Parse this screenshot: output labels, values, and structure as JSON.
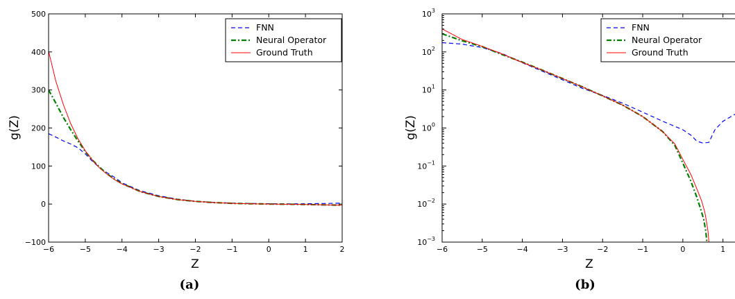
{
  "chart_data": [
    {
      "type": "line",
      "caption_paren_open": "(",
      "caption_letter": "a",
      "caption_paren_close": ")",
      "xlabel": "Z",
      "ylabel": "g(Z)",
      "xlim": [
        -6,
        2
      ],
      "ylim": [
        -100,
        500
      ],
      "yscale": "linear",
      "xticks": [
        "−6",
        "−5",
        "−4",
        "−3",
        "−2",
        "−1",
        "0",
        "1",
        "2"
      ],
      "yticks": [
        "−100",
        "0",
        "100",
        "200",
        "300",
        "400",
        "500"
      ],
      "legend_position": "top-right",
      "series": [
        {
          "name": "FNN",
          "color": "#0000ff",
          "style": "dashed",
          "x": [
            -6,
            -5.8,
            -5.6,
            -5.4,
            -5.2,
            -5.0,
            -4.8,
            -4.6,
            -4.4,
            -4.2,
            -4.0,
            -3.5,
            -3.0,
            -2.5,
            -2.0,
            -1.5,
            -1.0,
            -0.5,
            0,
            0.5,
            1.0,
            1.5,
            2.0
          ],
          "y": [
            185,
            176,
            166,
            158,
            148,
            132,
            112,
            95,
            82,
            70,
            56,
            35,
            22,
            13,
            7.5,
            4.5,
            2.5,
            1.5,
            1.0,
            0.5,
            0.8,
            1.5,
            2.5
          ]
        },
        {
          "name": "Neural Operator",
          "color": "#008000",
          "style": "dashdot",
          "x": [
            -6,
            -5.8,
            -5.6,
            -5.4,
            -5.2,
            -5.0,
            -4.8,
            -4.6,
            -4.4,
            -4.2,
            -4.0,
            -3.5,
            -3.0,
            -2.5,
            -2.0,
            -1.5,
            -1.0,
            -0.5,
            0,
            0.5,
            1.0,
            1.5,
            2.0
          ],
          "y": [
            300,
            265,
            228,
            196,
            166,
            138,
            115,
            96,
            79,
            65,
            54,
            33,
            20,
            12,
            7,
            4,
            2,
            0.8,
            0.1,
            -0.5,
            -1.2,
            -2.0,
            -3.0
          ]
        },
        {
          "name": "Ground Truth",
          "color": "#ff0000",
          "style": "solid",
          "x": [
            -6,
            -5.8,
            -5.6,
            -5.4,
            -5.2,
            -5.0,
            -4.8,
            -4.6,
            -4.4,
            -4.2,
            -4.0,
            -3.5,
            -3.0,
            -2.5,
            -2.0,
            -1.5,
            -1.0,
            -0.5,
            0,
            0.5,
            1.0,
            1.5,
            2.0
          ],
          "y": [
            402,
            322,
            262,
            212,
            172,
            140,
            115,
            94,
            78,
            64,
            53,
            33,
            20,
            12,
            7,
            4,
            2,
            0.8,
            0.1,
            -0.5,
            -1.2,
            -2.0,
            -3.0
          ]
        }
      ]
    },
    {
      "type": "line",
      "caption_paren_open": "(",
      "caption_letter": "b",
      "caption_paren_close": ")",
      "xlabel": "Z",
      "ylabel": "g(Z)",
      "xlim": [
        -6,
        1.3
      ],
      "ylim": [
        0.001,
        1000
      ],
      "yscale": "log",
      "xticks": [
        "−6",
        "−5",
        "−4",
        "−3",
        "−2",
        "−1",
        "0",
        "1"
      ],
      "yticks_base": [
        "10",
        "10",
        "10",
        "10",
        "10",
        "10",
        "10"
      ],
      "yticks_exp": [
        "−3",
        "−2",
        "−1",
        "0",
        "1",
        "2",
        "3"
      ],
      "legend_position": "top-right",
      "series": [
        {
          "name": "FNN",
          "color": "#0000ff",
          "style": "dashed",
          "x": [
            -6,
            -5.5,
            -5.0,
            -4.5,
            -4.0,
            -3.5,
            -3.0,
            -2.5,
            -2.0,
            -1.5,
            -1.0,
            -0.5,
            0,
            0.2,
            0.35,
            0.5,
            0.65,
            0.8,
            1.0,
            1.2,
            1.3
          ],
          "y": [
            175,
            160,
            130,
            90,
            52,
            31,
            18.5,
            11,
            7.2,
            4.5,
            2.6,
            1.5,
            0.9,
            0.65,
            0.45,
            0.4,
            0.42,
            0.9,
            1.5,
            2.0,
            2.3
          ]
        },
        {
          "name": "Neural Operator",
          "color": "#008000",
          "style": "dashdot",
          "x": [
            -6,
            -5.5,
            -5.0,
            -4.5,
            -4.0,
            -3.5,
            -3.0,
            -2.5,
            -2.0,
            -1.5,
            -1.0,
            -0.5,
            -0.2,
            0,
            0.2,
            0.35,
            0.45,
            0.52,
            0.57,
            0.6
          ],
          "y": [
            300,
            196,
            138,
            85,
            54,
            33,
            20,
            12,
            7,
            4,
            2,
            0.8,
            0.35,
            0.12,
            0.04,
            0.015,
            0.007,
            0.004,
            0.002,
            0.001
          ]
        },
        {
          "name": "Ground Truth",
          "color": "#ff0000",
          "style": "solid",
          "x": [
            -6,
            -5.5,
            -5.0,
            -4.5,
            -4.0,
            -3.5,
            -3.0,
            -2.5,
            -2.0,
            -1.5,
            -1.0,
            -0.5,
            -0.2,
            0,
            0.2,
            0.35,
            0.47,
            0.55,
            0.6,
            0.63,
            0.65
          ],
          "y": [
            402,
            212,
            140,
            88,
            53,
            33,
            20,
            12,
            7,
            4,
            2,
            0.8,
            0.38,
            0.15,
            0.06,
            0.025,
            0.012,
            0.006,
            0.003,
            0.0018,
            0.001
          ]
        }
      ]
    }
  ]
}
